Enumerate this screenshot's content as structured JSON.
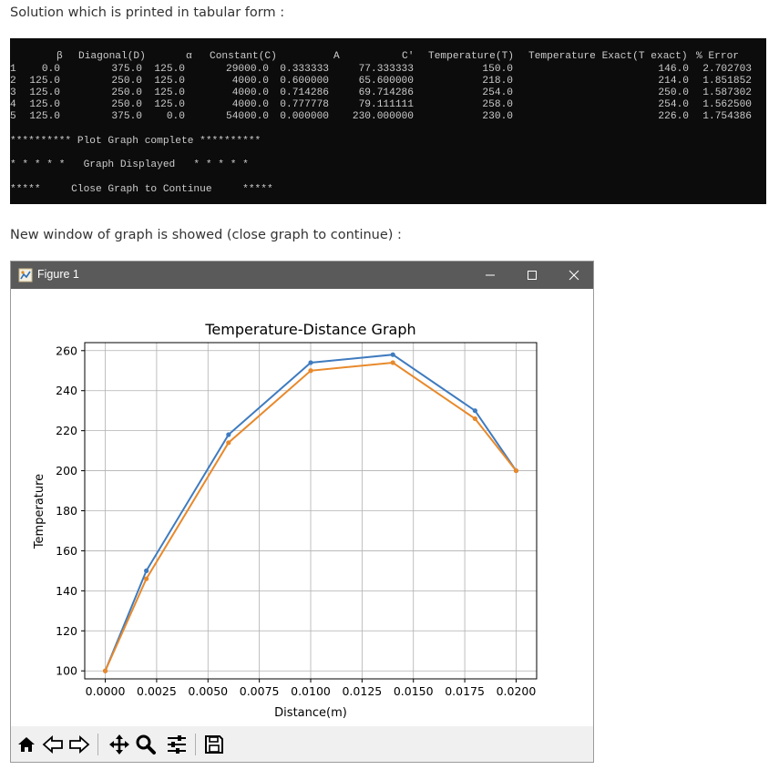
{
  "captions": {
    "top": "Solution which is printed in tabular form :",
    "middle": "New window of graph is showed (close graph to continue) :"
  },
  "console": {
    "headers": [
      "β",
      "Diagonal(D)",
      "α",
      "Constant(C)",
      "A",
      "C'",
      "Temperature(T)",
      "Temperature Exact(T exact)",
      "% Error"
    ],
    "rows": [
      [
        "1",
        "0.0",
        "375.0",
        "125.0",
        "29000.0",
        "0.333333",
        "77.333333",
        "150.0",
        "146.0",
        "2.702703"
      ],
      [
        "2",
        "125.0",
        "250.0",
        "125.0",
        "4000.0",
        "0.600000",
        "65.600000",
        "218.0",
        "214.0",
        "1.851852"
      ],
      [
        "3",
        "125.0",
        "250.0",
        "125.0",
        "4000.0",
        "0.714286",
        "69.714286",
        "254.0",
        "250.0",
        "1.587302"
      ],
      [
        "4",
        "125.0",
        "250.0",
        "125.0",
        "4000.0",
        "0.777778",
        "79.111111",
        "258.0",
        "254.0",
        "1.562500"
      ],
      [
        "5",
        "125.0",
        "375.0",
        "0.0",
        "54000.0",
        "0.000000",
        "230.000000",
        "230.0",
        "226.0",
        "1.754386"
      ]
    ],
    "messages": [
      "********** Plot Graph complete **********",
      "* * * * *   Graph Displayed   * * * * *",
      "*****     Close Graph to Continue     *****"
    ]
  },
  "window": {
    "title": "Figure 1",
    "icons": [
      "figure-app-icon",
      "minimize-icon",
      "maximize-icon",
      "close-icon"
    ]
  },
  "toolbar": {
    "icons": [
      "home-icon",
      "back-icon",
      "forward-icon",
      "pan-icon",
      "zoom-icon",
      "configure-subplots-icon",
      "save-icon"
    ]
  },
  "chart_data": {
    "type": "line",
    "title": "Temperature-Distance Graph",
    "xlabel": "Distance(m)",
    "ylabel": "Temperature",
    "xlim": [
      -0.001,
      0.021
    ],
    "ylim": [
      96,
      264
    ],
    "x_ticks": [
      0.0,
      0.0025,
      0.005,
      0.0075,
      0.01,
      0.0125,
      0.015,
      0.0175,
      0.02
    ],
    "x_tick_labels": [
      "0.0000",
      "0.0025",
      "0.0050",
      "0.0075",
      "0.0100",
      "0.0125",
      "0.0150",
      "0.0175",
      "0.0200"
    ],
    "y_ticks": [
      100,
      120,
      140,
      160,
      180,
      200,
      220,
      240,
      260
    ],
    "y_tick_labels": [
      "100",
      "120",
      "140",
      "160",
      "180",
      "200",
      "220",
      "240",
      "260"
    ],
    "grid": true,
    "x": [
      0.0,
      0.002,
      0.006,
      0.01,
      0.014,
      0.018,
      0.02
    ],
    "series": [
      {
        "values": [
          100,
          150,
          218,
          254,
          258,
          230,
          200
        ],
        "color": "#3f7bbf"
      },
      {
        "values": [
          100,
          146,
          214,
          250,
          254,
          226,
          200
        ],
        "color": "#e8892b"
      }
    ]
  }
}
